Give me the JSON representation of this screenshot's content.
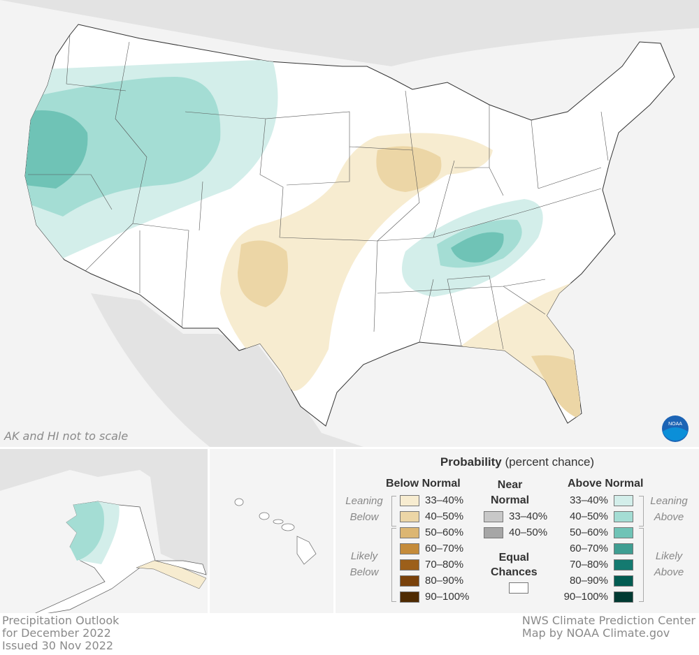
{
  "map": {
    "note": "AK and HI not to scale",
    "logo": "NOAA",
    "colors": {
      "land": "#ffffff",
      "neighbor": "#e3e3e3",
      "ocean": "#f3f3f3",
      "state_line": "#444444"
    }
  },
  "legend": {
    "title_bold": "Probability",
    "title_rest": "(percent chance)",
    "below": {
      "header": "Below Normal",
      "leaning": "Leaning Below",
      "likely": "Likely Below",
      "items": [
        {
          "label": "33–40%",
          "color": "#f7ecd0"
        },
        {
          "label": "40–50%",
          "color": "#ecd6a6"
        },
        {
          "label": "50–60%",
          "color": "#dcb672"
        },
        {
          "label": "60–70%",
          "color": "#c48b3a"
        },
        {
          "label": "70–80%",
          "color": "#9c5f1a"
        },
        {
          "label": "80–90%",
          "color": "#7a420b"
        },
        {
          "label": "90–100%",
          "color": "#4f2b02"
        }
      ]
    },
    "near": {
      "header_line1": "Near",
      "header_line2": "Normal",
      "items": [
        {
          "label": "33–40%",
          "color": "#c8c8c8"
        },
        {
          "label": "40–50%",
          "color": "#a6a6a6"
        }
      ]
    },
    "equal": {
      "line1": "Equal",
      "line2": "Chances",
      "color": "#ffffff"
    },
    "above": {
      "header": "Above Normal",
      "leaning": "Leaning Above",
      "likely": "Likely Above",
      "items": [
        {
          "label": "33–40%",
          "color": "#d3eeea"
        },
        {
          "label": "40–50%",
          "color": "#a4ddd4"
        },
        {
          "label": "50–60%",
          "color": "#6fc3b6"
        },
        {
          "label": "60–70%",
          "color": "#3f9e92"
        },
        {
          "label": "70–80%",
          "color": "#147a70"
        },
        {
          "label": "80–90%",
          "color": "#025c52"
        },
        {
          "label": "90–100%",
          "color": "#003a32"
        }
      ]
    }
  },
  "footer": {
    "left": [
      "Precipitation Outlook",
      "for December 2022",
      "Issued 30 Nov 2022"
    ],
    "right": [
      "NWS Climate Prediction Center",
      "Map by NOAA Climate.gov"
    ]
  }
}
